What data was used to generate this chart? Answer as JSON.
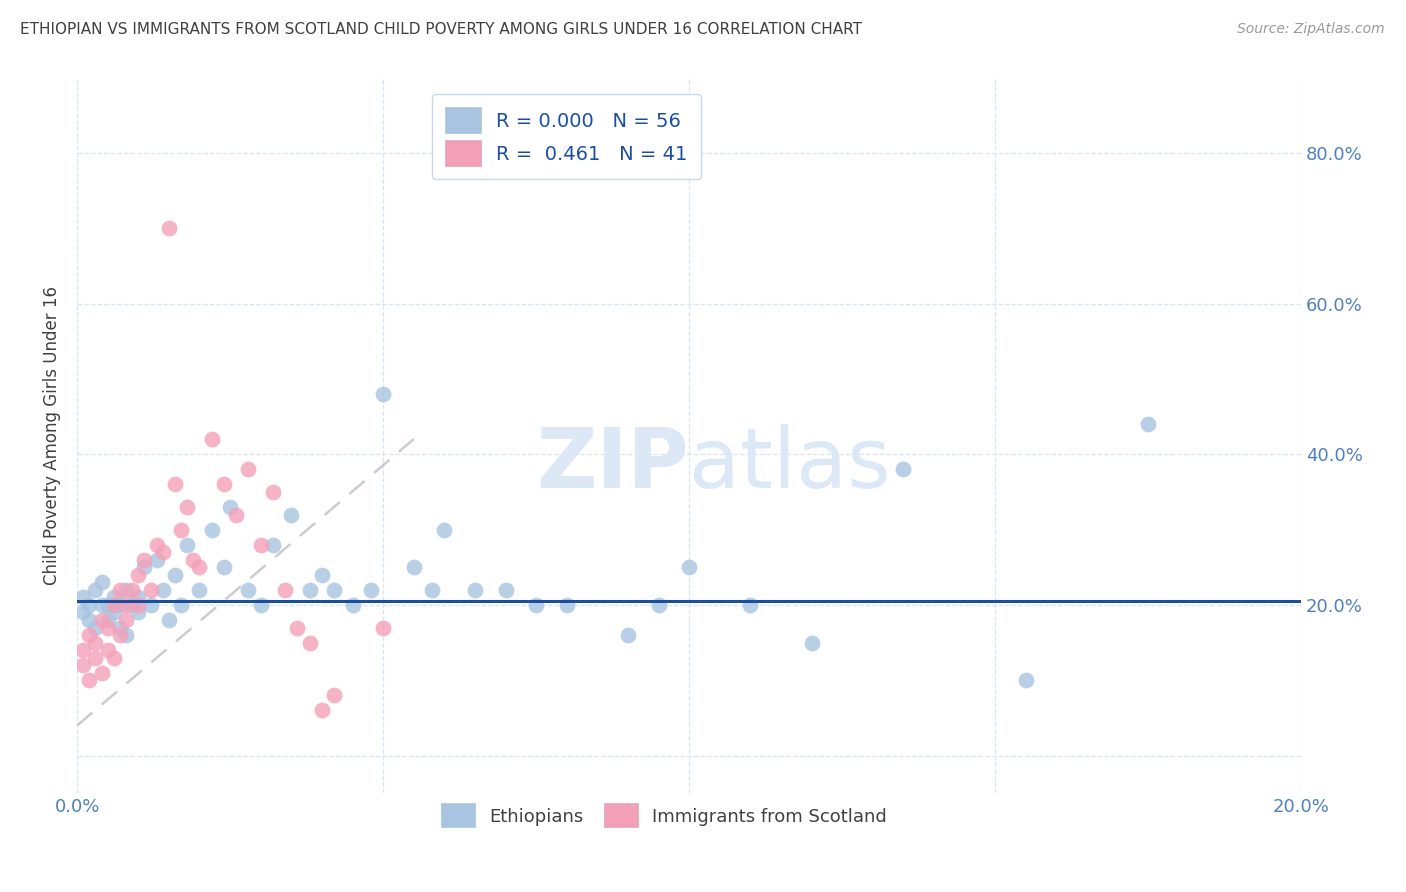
{
  "title": "ETHIOPIAN VS IMMIGRANTS FROM SCOTLAND CHILD POVERTY AMONG GIRLS UNDER 16 CORRELATION CHART",
  "source": "Source: ZipAtlas.com",
  "ylabel": "Child Poverty Among Girls Under 16",
  "xlim": [
    0.0,
    0.2
  ],
  "ylim": [
    -0.05,
    0.9
  ],
  "yticks": [
    0.0,
    0.2,
    0.4,
    0.6,
    0.8
  ],
  "ytick_labels": [
    "",
    "20.0%",
    "40.0%",
    "60.0%",
    "80.0%"
  ],
  "xticks": [
    0.0,
    0.05,
    0.1,
    0.15,
    0.2
  ],
  "xtick_labels": [
    "0.0%",
    "",
    "",
    "",
    "20.0%"
  ],
  "blue_r": "0.000",
  "blue_n": "56",
  "pink_r": "0.461",
  "pink_n": "41",
  "blue_color": "#a8c4e0",
  "pink_color": "#f4a0b8",
  "blue_line_color": "#1a4fa0",
  "pink_line_color": "#e06080",
  "grid_color": "#d8e4f0",
  "title_color": "#404040",
  "axis_color": "#5080c0",
  "watermark_color": "#dce8f5",
  "blue_regression_y": 0.205,
  "pink_regression_x0": 0.0,
  "pink_regression_y0": 0.04,
  "pink_regression_x1": 0.055,
  "pink_regression_y1": 0.42,
  "blue_scatter_x": [
    0.001,
    0.001,
    0.002,
    0.002,
    0.003,
    0.003,
    0.004,
    0.004,
    0.005,
    0.005,
    0.006,
    0.006,
    0.007,
    0.007,
    0.008,
    0.008,
    0.009,
    0.01,
    0.01,
    0.011,
    0.012,
    0.013,
    0.014,
    0.015,
    0.016,
    0.017,
    0.018,
    0.02,
    0.022,
    0.024,
    0.025,
    0.028,
    0.03,
    0.032,
    0.035,
    0.038,
    0.04,
    0.042,
    0.045,
    0.048,
    0.05,
    0.055,
    0.058,
    0.06,
    0.065,
    0.07,
    0.075,
    0.08,
    0.09,
    0.095,
    0.1,
    0.11,
    0.12,
    0.135,
    0.155,
    0.175
  ],
  "blue_scatter_y": [
    0.19,
    0.21,
    0.2,
    0.18,
    0.22,
    0.17,
    0.2,
    0.23,
    0.18,
    0.2,
    0.21,
    0.19,
    0.2,
    0.17,
    0.22,
    0.16,
    0.2,
    0.21,
    0.19,
    0.25,
    0.2,
    0.26,
    0.22,
    0.18,
    0.24,
    0.2,
    0.28,
    0.22,
    0.3,
    0.25,
    0.33,
    0.22,
    0.2,
    0.28,
    0.32,
    0.22,
    0.24,
    0.22,
    0.2,
    0.22,
    0.48,
    0.25,
    0.22,
    0.3,
    0.22,
    0.22,
    0.2,
    0.2,
    0.16,
    0.2,
    0.25,
    0.2,
    0.15,
    0.38,
    0.1,
    0.44
  ],
  "pink_scatter_x": [
    0.001,
    0.001,
    0.002,
    0.002,
    0.003,
    0.003,
    0.004,
    0.004,
    0.005,
    0.005,
    0.006,
    0.006,
    0.007,
    0.007,
    0.008,
    0.008,
    0.009,
    0.01,
    0.01,
    0.011,
    0.012,
    0.013,
    0.014,
    0.015,
    0.016,
    0.017,
    0.018,
    0.019,
    0.02,
    0.022,
    0.024,
    0.026,
    0.028,
    0.03,
    0.032,
    0.034,
    0.036,
    0.038,
    0.04,
    0.042,
    0.05
  ],
  "pink_scatter_y": [
    0.14,
    0.12,
    0.16,
    0.1,
    0.15,
    0.13,
    0.18,
    0.11,
    0.17,
    0.14,
    0.2,
    0.13,
    0.22,
    0.16,
    0.2,
    0.18,
    0.22,
    0.24,
    0.2,
    0.26,
    0.22,
    0.28,
    0.27,
    0.7,
    0.36,
    0.3,
    0.33,
    0.26,
    0.25,
    0.42,
    0.36,
    0.32,
    0.38,
    0.28,
    0.35,
    0.22,
    0.17,
    0.15,
    0.06,
    0.08,
    0.17
  ]
}
